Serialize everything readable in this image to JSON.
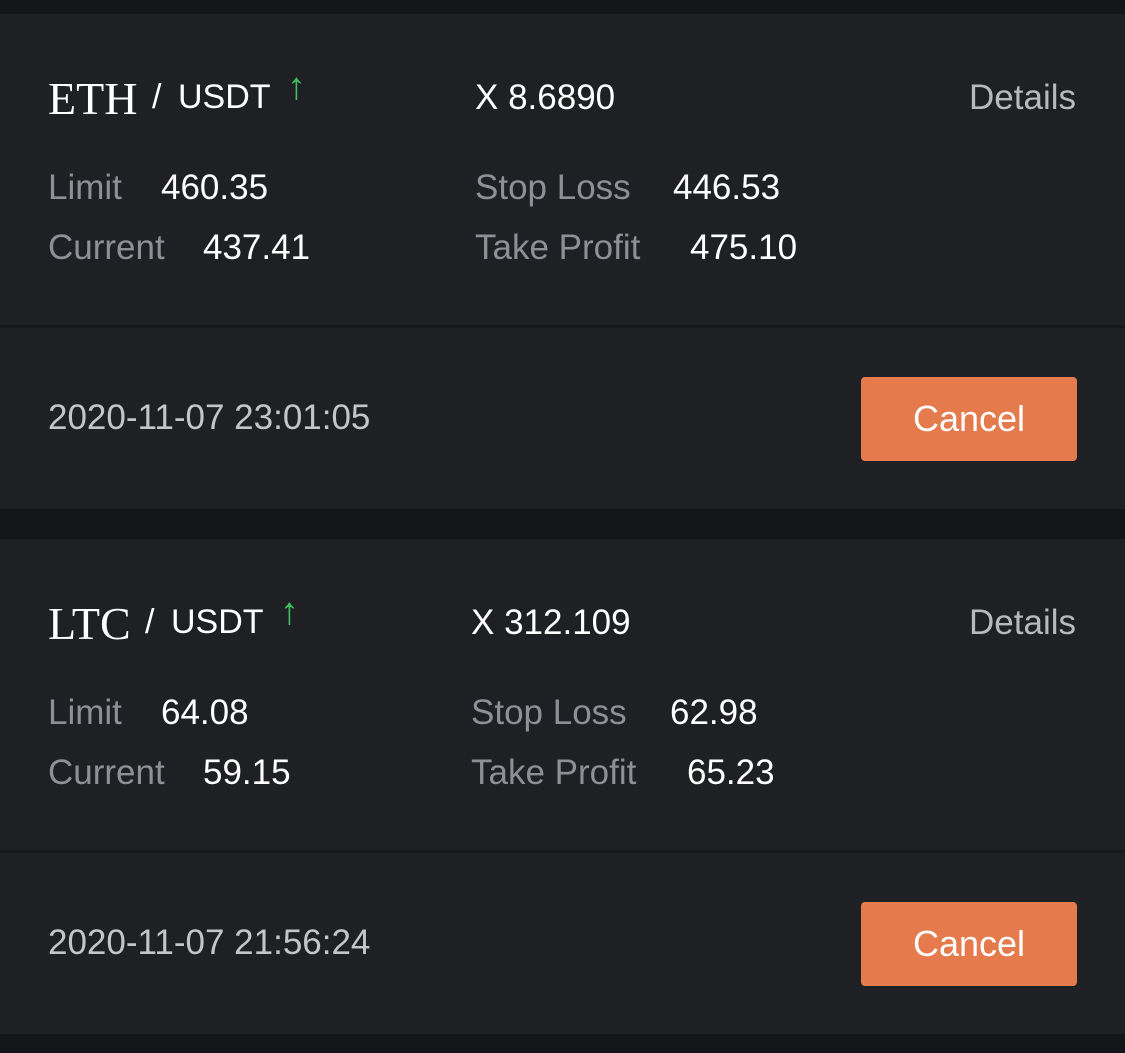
{
  "colors": {
    "background": "#141518",
    "card": "#1f2024",
    "up_arrow": "#3fbf62",
    "cancel_button": "#e57a4c",
    "label_text": "#8e9095",
    "value_text": "#ffffff"
  },
  "orders": [
    {
      "base": "ETH",
      "slash": "/",
      "quote": "USDT",
      "direction_icon": "arrow-up-icon",
      "direction_glyph": "↑",
      "multiplier": "X 8.6890",
      "details_label": "Details",
      "limit_label": "Limit",
      "limit_value": "460.35",
      "current_label": "Current",
      "current_value": "437.41",
      "stop_loss_label": "Stop Loss",
      "stop_loss_value": "446.53",
      "take_profit_label": "Take Profit",
      "take_profit_value": "475.10",
      "timestamp": "2020-11-07 23:01:05",
      "cancel_label": "Cancel"
    },
    {
      "base": "LTC",
      "slash": "/",
      "quote": "USDT",
      "direction_icon": "arrow-up-icon",
      "direction_glyph": "↑",
      "multiplier": "X 312.109",
      "details_label": "Details",
      "limit_label": "Limit",
      "limit_value": "64.08",
      "current_label": "Current",
      "current_value": "59.15",
      "stop_loss_label": "Stop Loss",
      "stop_loss_value": "62.98",
      "take_profit_label": "Take Profit",
      "take_profit_value": "65.23",
      "timestamp": "2020-11-07 21:56:24",
      "cancel_label": "Cancel"
    }
  ]
}
